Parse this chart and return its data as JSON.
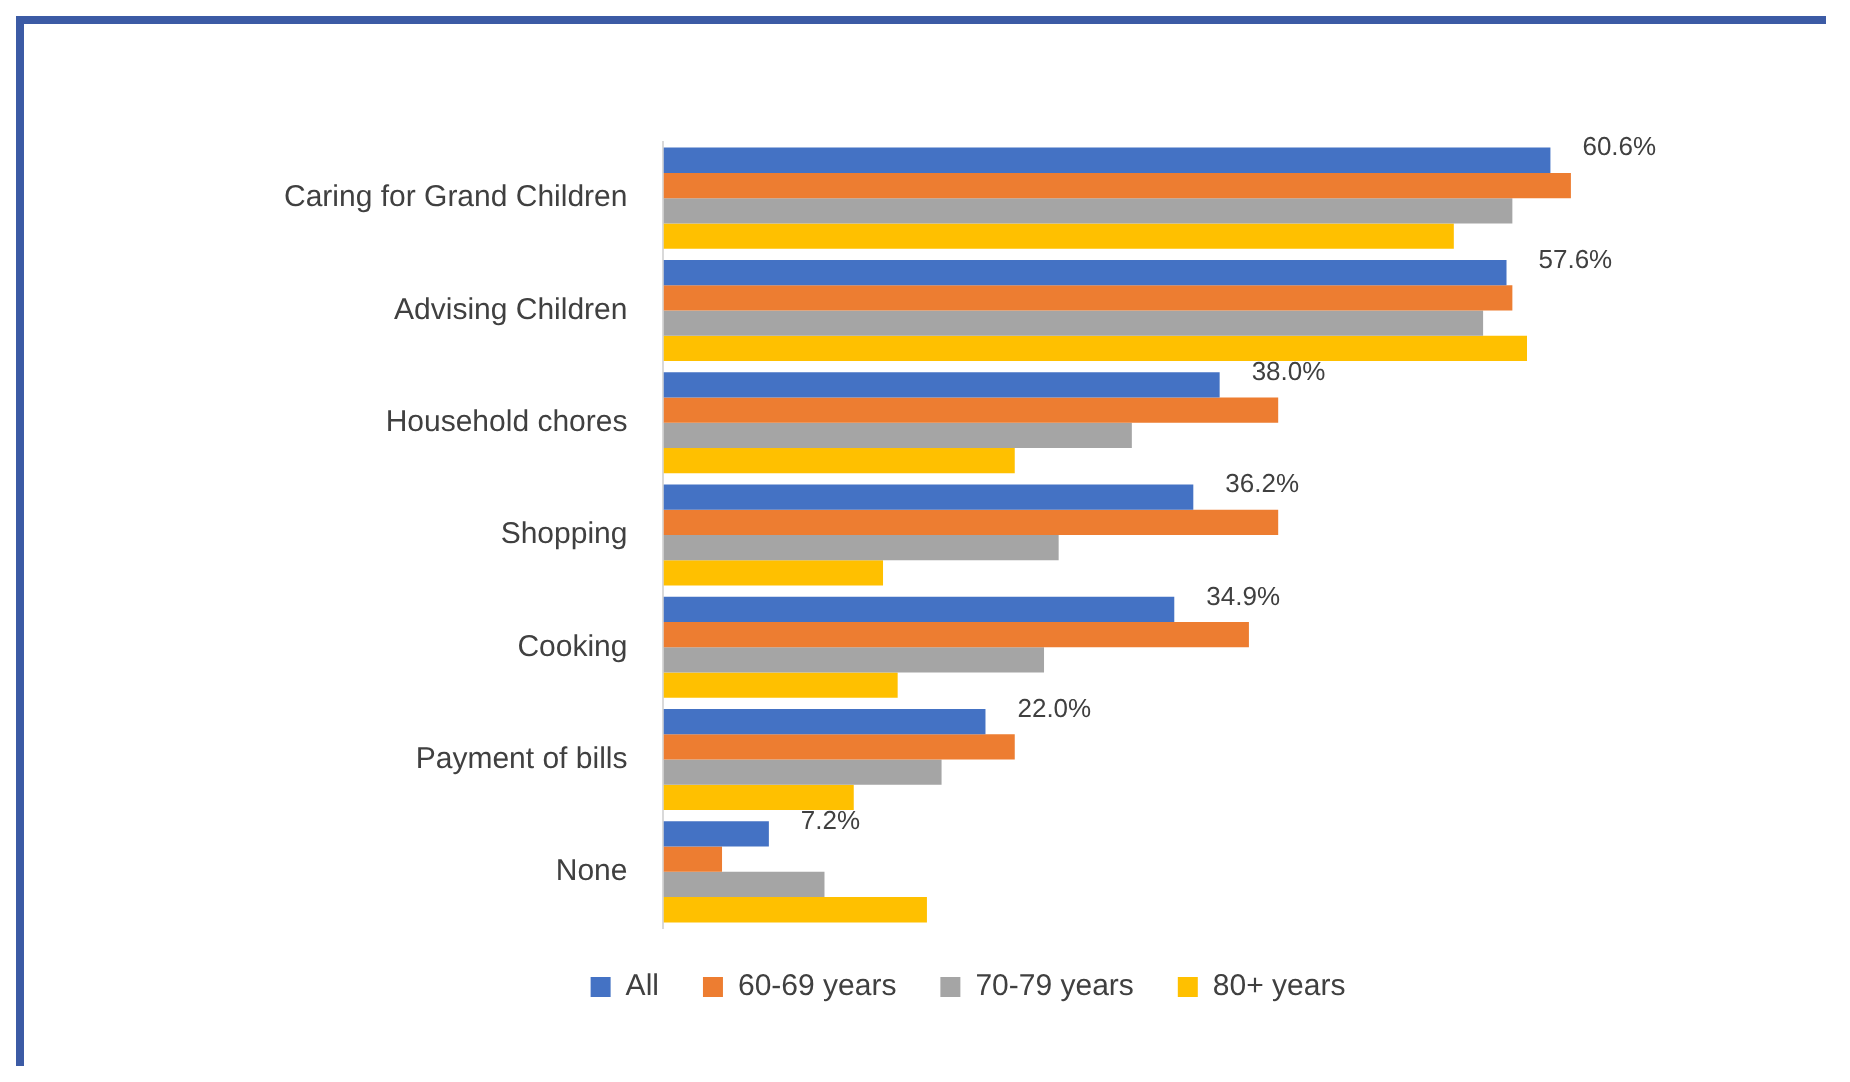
{
  "chart_data": {
    "type": "bar",
    "orientation": "horizontal",
    "categories": [
      "Caring for Grand Children",
      "Advising Children",
      "Household chores",
      "Shopping",
      "Cooking",
      "Payment of bills",
      "None"
    ],
    "series": [
      {
        "name": "All",
        "color": "#4472c4",
        "values": [
          60.6,
          57.6,
          38.0,
          36.2,
          34.9,
          22.0,
          7.2
        ],
        "value_labels": [
          "60.6%",
          "57.6%",
          "38.0%",
          "36.2%",
          "34.9%",
          "22.0%",
          "7.2%"
        ]
      },
      {
        "name": "60-69 years",
        "color": "#ed7d31",
        "values": [
          62,
          58,
          42,
          42,
          40,
          24,
          4
        ]
      },
      {
        "name": "70-79 years",
        "color": "#a5a5a5",
        "values": [
          58,
          56,
          32,
          27,
          26,
          19,
          11
        ]
      },
      {
        "name": "80+ years",
        "color": "#ffc000",
        "values": [
          54,
          59,
          24,
          15,
          16,
          13,
          18
        ]
      }
    ],
    "legend": "bottom"
  }
}
